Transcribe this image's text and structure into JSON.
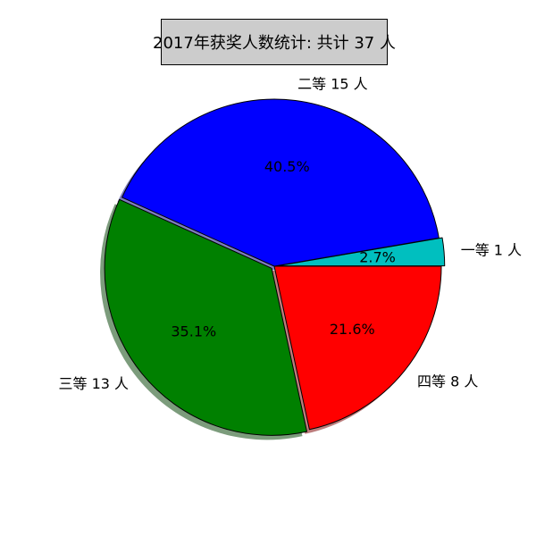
{
  "chart_data": {
    "type": "pie",
    "title": "2017年获奖人数统计: 共计 37 人",
    "total": 37,
    "slices": [
      {
        "label": "一等 1 人",
        "value": 1,
        "percent_label": "2.7%",
        "color": "#00bfbf",
        "exploded": true
      },
      {
        "label": "二等 15 人",
        "value": 15,
        "percent_label": "40.5%",
        "color": "#0000ff",
        "exploded": false
      },
      {
        "label": "三等 13 人",
        "value": 13,
        "percent_label": "35.1%",
        "color": "#008000",
        "exploded": true
      },
      {
        "label": "四等 8 人",
        "value": 8,
        "percent_label": "21.6%",
        "color": "#ff0000",
        "exploded": false
      }
    ],
    "shadow": true,
    "start_angle_deg": 0,
    "direction": "counterclockwise"
  }
}
